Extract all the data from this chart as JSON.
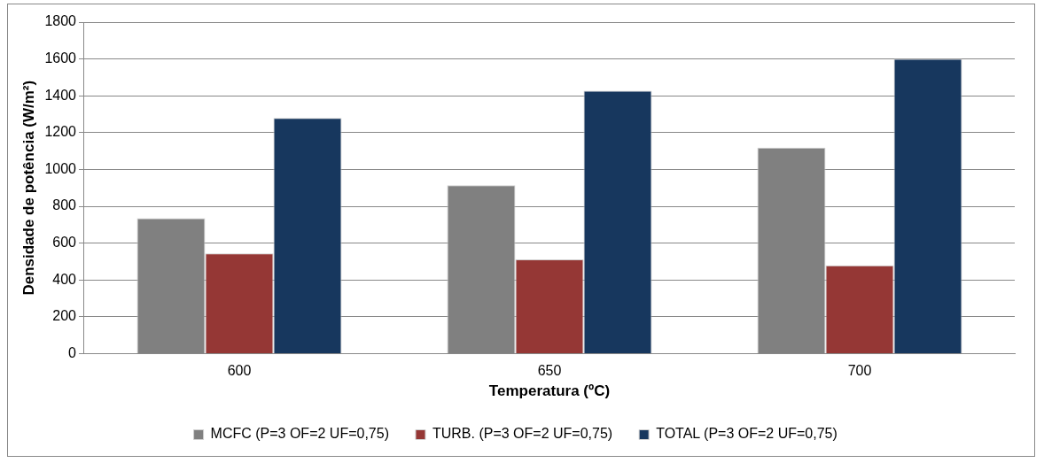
{
  "chart_data": {
    "type": "bar",
    "xlabel": "Temperatura (ºC)",
    "ylabel": "Densidade de potência (W/m²)",
    "categories": [
      "600",
      "650",
      "700"
    ],
    "series": [
      {
        "name": "MCFC (P=3 OF=2 UF=0,75)",
        "color": "#808080",
        "values": [
          735,
          914,
          1119
        ]
      },
      {
        "name": "TURB. (P=3 OF=2 UF=0,75)",
        "color": "#953735",
        "values": [
          544,
          511,
          479
        ]
      },
      {
        "name": "TOTAL (P=3 OF=2 UF=0,75)",
        "color": "#17375e",
        "values": [
          1279,
          1428,
          1600
        ]
      }
    ],
    "ylim": [
      0,
      1800
    ],
    "yticks": [
      0,
      200,
      400,
      600,
      800,
      1000,
      1200,
      1400,
      1600,
      1800
    ],
    "grid": "y",
    "legend": "bottom"
  }
}
